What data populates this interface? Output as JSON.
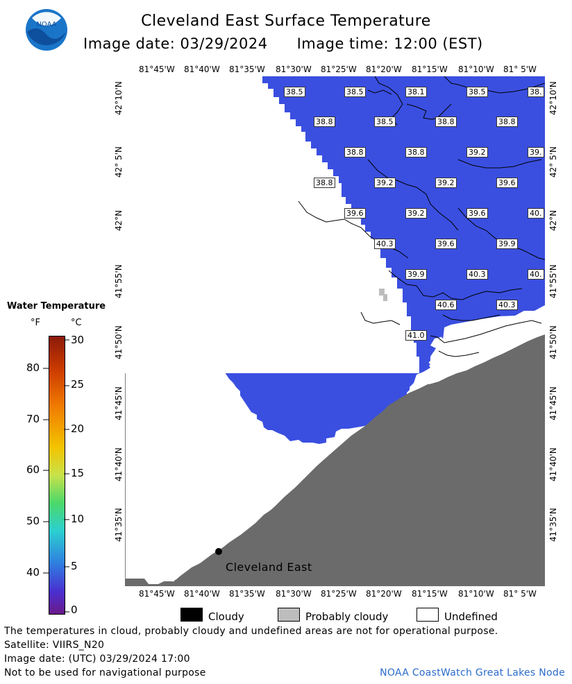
{
  "header": {
    "title": "Cleveland East Surface Temperature",
    "image_date": "Image date: 03/29/2024",
    "image_time": "Image time: 12:00 (EST)"
  },
  "logo": {
    "text": "NOAA",
    "icon": "noaa-logo-icon"
  },
  "map": {
    "longitude_labels": [
      "81°45'W",
      "81°40'W",
      "81°35'W",
      "81°30'W",
      "81°25'W",
      "81°20'W",
      "81°15'W",
      "81°10'W",
      "81° 5'W"
    ],
    "latitude_labels": [
      "42°10'N",
      "42° 5'N",
      "42°N",
      "41°55'N",
      "41°50'N",
      "41°45'N",
      "41°40'N",
      "41°35'N"
    ],
    "place_label": "Cleveland East",
    "temperature_labels": [
      "38.5",
      "38.5",
      "38.1",
      "38.5",
      "38.",
      "38.8",
      "38.5",
      "38.8",
      "38.8",
      "38.8",
      "38.8",
      "39.2",
      "39.",
      "38.8",
      "39.2",
      "39.2",
      "39.6",
      "39.6",
      "39.2",
      "39.6",
      "40.",
      "40.3",
      "39.6",
      "39.9",
      "39.9",
      "40.3",
      "40.",
      "40.6",
      "40.3",
      "41.0"
    ],
    "colors": {
      "water": "#3a4fe0",
      "land": "#6b6b6b",
      "probably_cloudy": "#bdbdbd",
      "cloudy": "#000000"
    }
  },
  "legend": {
    "title": "Water Temperature",
    "unit_f": "°F",
    "unit_c": "°C",
    "fahrenheit_ticks": [
      "80",
      "70",
      "60",
      "50",
      "40"
    ],
    "celsius_ticks": [
      "30",
      "25",
      "20",
      "15",
      "10",
      "5",
      "0"
    ]
  },
  "key": {
    "cloudy": "Cloudy",
    "probably_cloudy": "Probably cloudy",
    "undefined": "Undefined"
  },
  "footer": {
    "disclaimer": "The temperatures in cloud, probably cloudy and undefined areas are not for operational purpose.",
    "satellite": "Satellite: VIIRS_N20",
    "image_date_utc": "Image date: (UTC) 03/29/2024  17:00",
    "navigation": "Not to be used for navigational purpose",
    "credit": "NOAA CoastWatch Great Lakes Node"
  }
}
